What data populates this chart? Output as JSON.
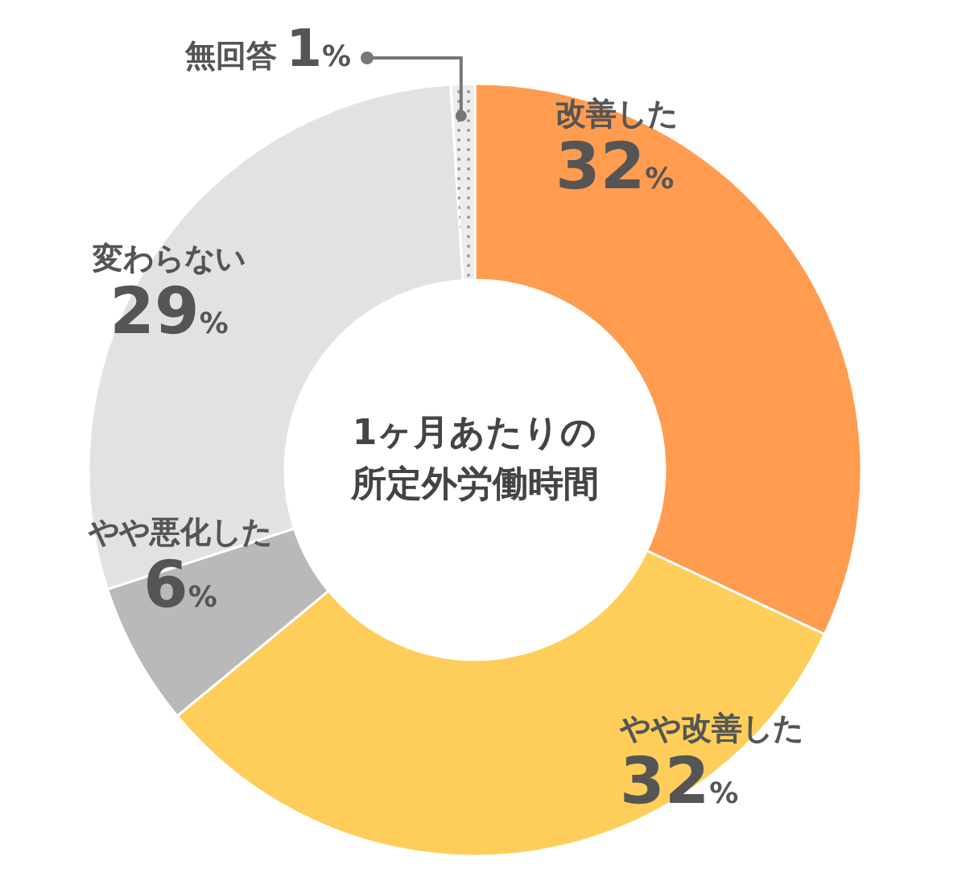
{
  "chart_data": {
    "type": "donut",
    "title": "1ヶ月あたりの所定外労働時間",
    "categories": [
      "改善した",
      "やや改善した",
      "やや悪化した",
      "変わらない",
      "無回答"
    ],
    "values": [
      32,
      32,
      6,
      29,
      1
    ],
    "value_labels": [
      "32%",
      "32%",
      "6%",
      "29%",
      "1%"
    ],
    "colors": [
      "#ff9c50",
      "#ffce5a",
      "#b9b9b9",
      "#e2e2e2",
      "#ececec"
    ]
  }
}
